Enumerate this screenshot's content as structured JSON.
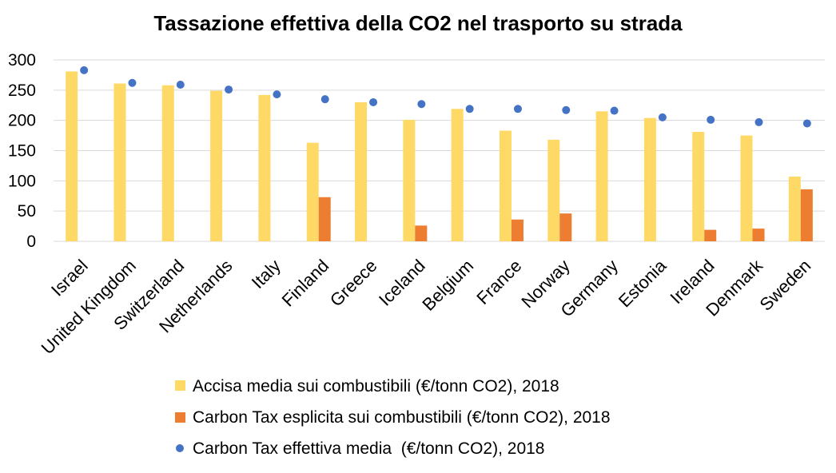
{
  "chart_data": {
    "type": "bar",
    "title": "Tassazione effettiva della CO2 nel trasporto su strada",
    "xlabel": "",
    "ylabel": "",
    "ylim": [
      0,
      300
    ],
    "yticks": [
      "0",
      "50",
      "100",
      "150",
      "200",
      "250",
      "300"
    ],
    "categories": [
      "Israel",
      "United Kingdom",
      "Switzerland",
      "Netherlands",
      "Italy",
      "Finland",
      "Greece",
      "Iceland",
      "Belgium",
      "France",
      "Norway",
      "Germany",
      "Estonia",
      "Ireland",
      "Denmark",
      "Sweden"
    ],
    "series": [
      {
        "name": "Accisa media sui combustibili (€/tonn CO2), 2018",
        "kind": "bar",
        "color": "#FFD966",
        "values": [
          281,
          261,
          258,
          249,
          242,
          163,
          230,
          201,
          219,
          183,
          168,
          215,
          204,
          181,
          175,
          107
        ]
      },
      {
        "name": "Carbon Tax esplicita sui combustibili (€/tonn CO2), 2018",
        "kind": "bar",
        "color": "#ED7D31",
        "values": [
          0,
          0,
          0,
          0,
          0,
          73,
          0,
          26,
          0,
          36,
          46,
          0,
          0,
          19,
          21,
          86
        ]
      },
      {
        "name": "Carbon Tax effettiva media  (€/tonn CO2), 2018",
        "kind": "marker",
        "color": "#4472C4",
        "values": [
          283,
          262,
          259,
          251,
          243,
          235,
          230,
          227,
          219,
          219,
          217,
          216,
          205,
          201,
          197,
          195
        ]
      }
    ]
  }
}
